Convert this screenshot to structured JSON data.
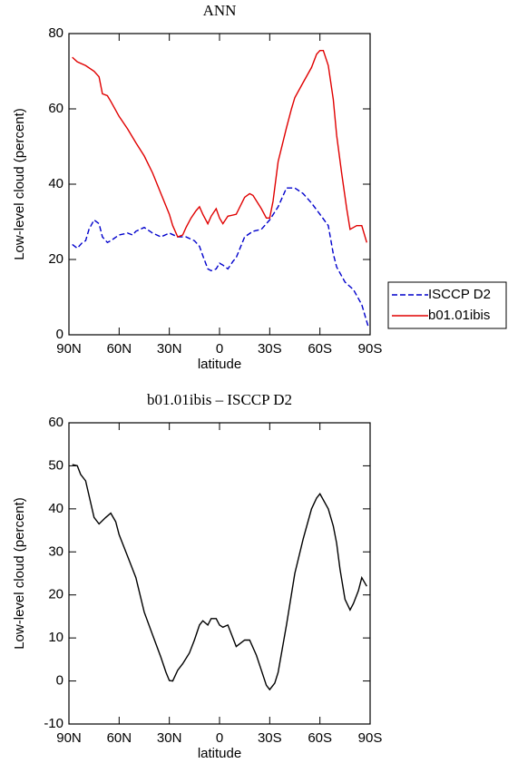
{
  "chart_data": [
    {
      "type": "line",
      "title": "ANN",
      "ylabel": "Low-level cloud (percent)",
      "xlabel": "latitude",
      "xlim": [
        90,
        -90
      ],
      "xticks": [
        {
          "value": 90,
          "label": "90N"
        },
        {
          "value": 60,
          "label": "60N"
        },
        {
          "value": 30,
          "label": "30N"
        },
        0,
        {
          "value": -30,
          "label": "30S"
        },
        {
          "value": -60,
          "label": "60S"
        },
        {
          "value": -90,
          "label": "90S"
        }
      ],
      "ylim": [
        0,
        80
      ],
      "yticks": [
        0,
        20,
        40,
        60,
        80
      ],
      "legend": "outside right",
      "series": [
        {
          "name": "ISCCP D2",
          "color": "#0000cc",
          "linestyle": "dashed",
          "x": [
            88,
            85,
            82,
            80,
            78,
            75,
            72,
            70,
            67,
            65,
            60,
            55,
            52,
            50,
            45,
            40,
            35,
            30,
            25,
            20,
            15,
            12,
            10,
            7,
            5,
            2,
            0,
            -2,
            -5,
            -8,
            -10,
            -15,
            -20,
            -25,
            -30,
            -35,
            -40,
            -45,
            -50,
            -55,
            -60,
            -65,
            -68,
            -70,
            -75,
            -80,
            -85,
            -88,
            -89
          ],
          "values": [
            24,
            23,
            24.5,
            25,
            28,
            30.5,
            29.5,
            26,
            24.5,
            25,
            26.5,
            27,
            26.5,
            27.5,
            28.5,
            27,
            26,
            27,
            26,
            26,
            25,
            23.5,
            21,
            17.5,
            17,
            17.5,
            19,
            18.5,
            17.5,
            19.5,
            20.5,
            26,
            27.5,
            28,
            30.5,
            34,
            39,
            39,
            37.5,
            35,
            32,
            29,
            21.5,
            18,
            14,
            12,
            8,
            3.5,
            2
          ]
        },
        {
          "name": "b01.01ibis",
          "color": "#e00000",
          "linestyle": "solid",
          "x": [
            88,
            85,
            80,
            75,
            72,
            70,
            67,
            65,
            60,
            55,
            50,
            45,
            40,
            35,
            30,
            28,
            25,
            22,
            20,
            17,
            14,
            12,
            10,
            7,
            5,
            2,
            0,
            -2,
            -5,
            -10,
            -15,
            -18,
            -20,
            -25,
            -28,
            -30,
            -32,
            -35,
            -40,
            -43,
            -45,
            -50,
            -55,
            -58,
            -60,
            -62,
            -65,
            -68,
            -70,
            -73,
            -76,
            -78,
            -82,
            -85,
            -88
          ],
          "values": [
            73.7,
            72.5,
            71.5,
            70,
            68.5,
            64,
            63.5,
            62,
            58,
            54.7,
            51,
            47.5,
            43,
            37.5,
            32,
            29,
            26,
            26.5,
            28.5,
            31,
            33,
            34,
            32,
            29.5,
            31.5,
            33.5,
            31,
            29.5,
            31.5,
            32,
            36.5,
            37.5,
            37,
            33.5,
            31,
            31,
            35.5,
            46,
            55,
            60,
            63,
            67,
            71,
            74.5,
            75.5,
            75.5,
            71.5,
            62.5,
            53,
            43,
            33.5,
            28,
            29,
            29,
            24.5
          ]
        }
      ]
    },
    {
      "type": "line",
      "title": "b01.01ibis – ISCCP D2",
      "ylabel": "Low-level cloud (percent)",
      "xlabel": "latitude",
      "xlim": [
        90,
        -90
      ],
      "xticks": [
        {
          "value": 90,
          "label": "90N"
        },
        {
          "value": 60,
          "label": "60N"
        },
        {
          "value": 30,
          "label": "30N"
        },
        0,
        {
          "value": -30,
          "label": "30S"
        },
        {
          "value": -60,
          "label": "60S"
        },
        {
          "value": -90,
          "label": "90S"
        }
      ],
      "ylim": [
        -10,
        60
      ],
      "yticks": [
        -10,
        0,
        10,
        20,
        30,
        40,
        50,
        60
      ],
      "series": [
        {
          "color": "#000000",
          "linestyle": "solid",
          "x": [
            88,
            85,
            83,
            80,
            75,
            72,
            68,
            65,
            62,
            60,
            55,
            50,
            45,
            40,
            35,
            32,
            30,
            28,
            25,
            22,
            18,
            15,
            12,
            10,
            7,
            5,
            2,
            0,
            -2,
            -5,
            -10,
            -15,
            -18,
            -22,
            -25,
            -28,
            -30,
            -33,
            -35,
            -40,
            -45,
            -50,
            -55,
            -58,
            -60,
            -65,
            -68,
            -70,
            -72,
            -75,
            -78,
            -80,
            -83,
            -85,
            -88
          ],
          "values": [
            50.3,
            50,
            48,
            46.5,
            38,
            36.5,
            38,
            39,
            37,
            34,
            29,
            24,
            16,
            10.7,
            5.5,
            2,
            0.1,
            0,
            2.5,
            4,
            6.5,
            9.5,
            13,
            14,
            13,
            14.5,
            14.5,
            13,
            12.5,
            13,
            8,
            9.5,
            9.5,
            6,
            2.5,
            -1,
            -2,
            -0.5,
            2,
            13,
            25,
            33,
            40,
            42.5,
            43.5,
            40,
            36,
            32,
            26,
            19,
            16.5,
            18,
            21,
            24,
            22
          ]
        }
      ]
    }
  ]
}
